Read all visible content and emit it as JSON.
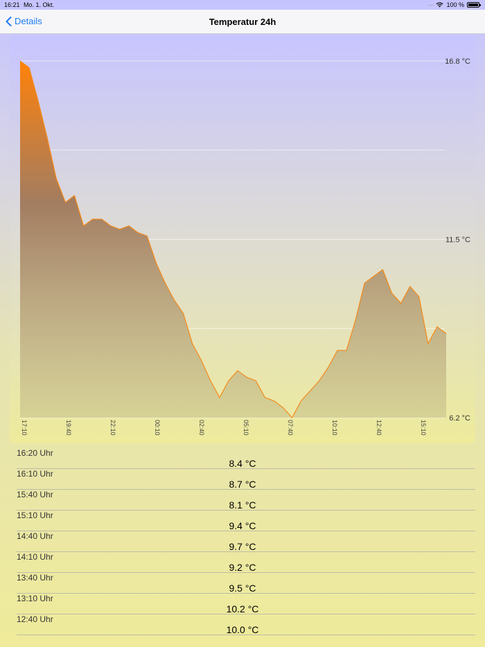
{
  "status_bar": {
    "time": "16:21",
    "date": "Mo. 1. Okt.",
    "battery": "100 %",
    "battery_level": 1.0
  },
  "nav": {
    "back_label": "Details",
    "title": "Temperatur 24h"
  },
  "colors": {
    "accent": "#1f7bf6",
    "line": "#f5891a",
    "fill_top": "#ff8a0c"
  },
  "chart_data": {
    "type": "area",
    "y_tick_labels": [
      "16.8 °C",
      "11.5 °C",
      "6.2 °C"
    ],
    "ylim": [
      6.2,
      16.8
    ],
    "x_tick_labels": [
      "17:10",
      "19:40",
      "22:10",
      "00:10",
      "02:40",
      "05:10",
      "07:40",
      "10:10",
      "12:40",
      "15:10"
    ],
    "grid": true,
    "series": [
      {
        "values": [
          16.8,
          16.6,
          15.6,
          14.5,
          13.3,
          12.6,
          12.8,
          11.9,
          12.1,
          12.1,
          11.9,
          11.8,
          11.9,
          11.7,
          11.6,
          10.8,
          10.2,
          9.7,
          9.3,
          8.4,
          7.9,
          7.3,
          6.8,
          7.3,
          7.6,
          7.4,
          7.3,
          6.8,
          6.7,
          6.5,
          6.2,
          6.7,
          7.0,
          7.3,
          7.7,
          8.2,
          8.2,
          9.1,
          10.2,
          10.4,
          10.6,
          9.9,
          9.6,
          10.1,
          9.8,
          8.4,
          8.9,
          8.7
        ]
      }
    ]
  },
  "readings": [
    {
      "time": "16:20 Uhr",
      "value": "8.4 °C"
    },
    {
      "time": "16:10 Uhr",
      "value": "8.7 °C"
    },
    {
      "time": "15:40 Uhr",
      "value": "8.1 °C"
    },
    {
      "time": "15:10 Uhr",
      "value": "9.4 °C"
    },
    {
      "time": "14:40 Uhr",
      "value": "9.7 °C"
    },
    {
      "time": "14:10 Uhr",
      "value": "9.2 °C"
    },
    {
      "time": "13:40 Uhr",
      "value": "9.5 °C"
    },
    {
      "time": "13:10 Uhr",
      "value": "10.2 °C"
    },
    {
      "time": "12:40 Uhr",
      "value": "10.0 °C"
    }
  ]
}
